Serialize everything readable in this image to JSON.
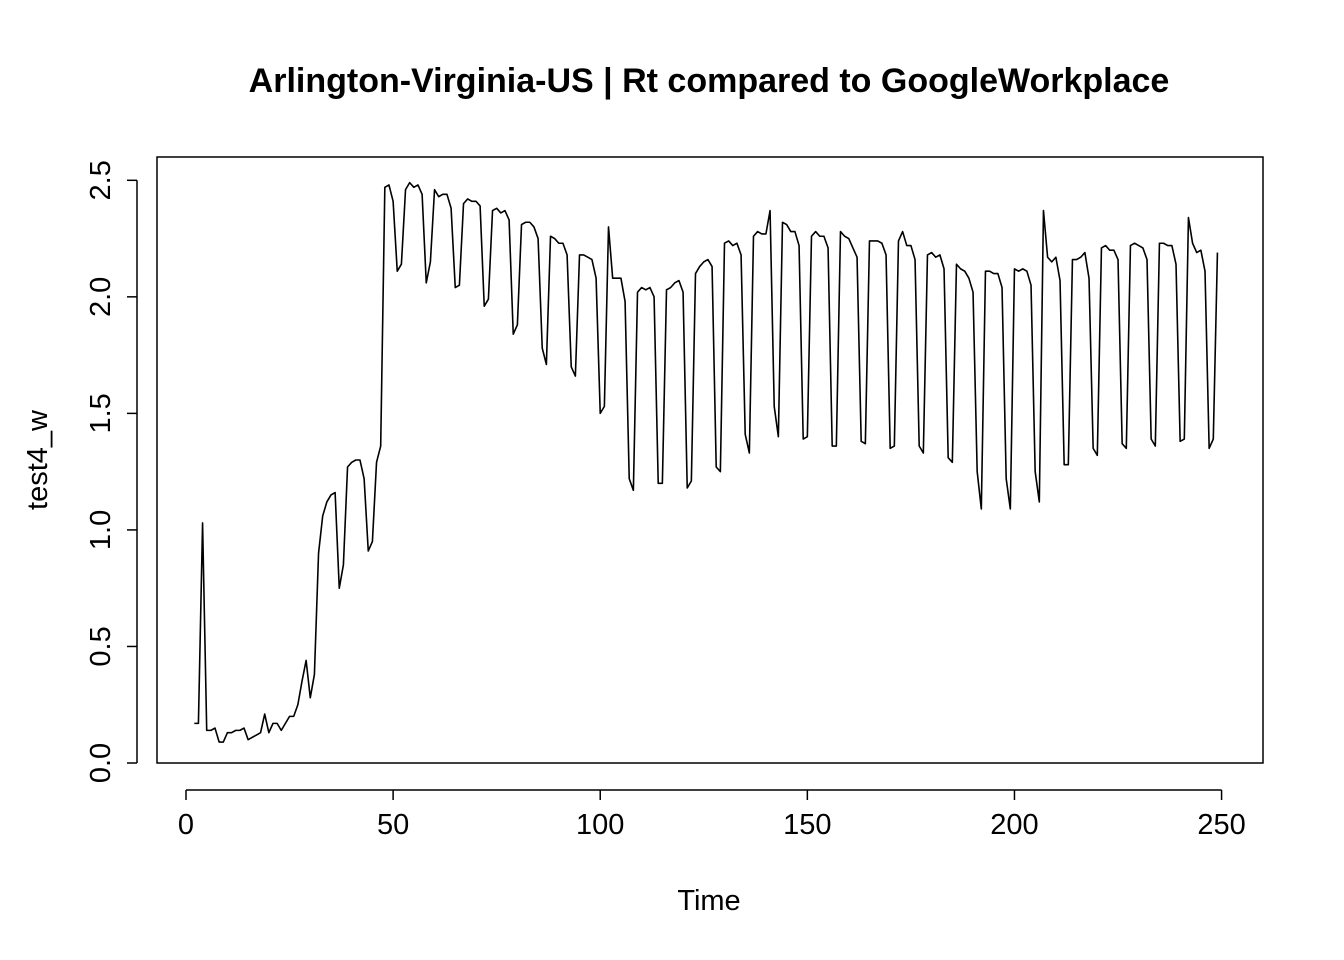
{
  "chart_data": {
    "type": "line",
    "title": "Arlington-Virginia-US | Rt compared to GoogleWorkplace",
    "xlabel": "Time",
    "ylabel": "test4_w",
    "xlim": [
      -7,
      260
    ],
    "ylim": [
      0,
      2.6
    ],
    "x_ticks": [
      0,
      50,
      100,
      150,
      200,
      250
    ],
    "y_ticks": [
      0.0,
      0.5,
      1.0,
      1.5,
      2.0,
      2.5
    ],
    "x_tick_labels": [
      "0",
      "50",
      "100",
      "150",
      "200",
      "250"
    ],
    "y_tick_labels": [
      "0.0",
      "0.5",
      "1.0",
      "1.5",
      "2.0",
      "2.5"
    ],
    "grid": false,
    "legend": "none",
    "line_color": "#000000",
    "series": [
      {
        "x_start": 2,
        "values": [
          0.17,
          0.17,
          1.03,
          0.14,
          0.14,
          0.15,
          0.09,
          0.09,
          0.13,
          0.13,
          0.14,
          0.14,
          0.15,
          0.1,
          0.11,
          0.12,
          0.13,
          0.21,
          0.13,
          0.17,
          0.17,
          0.14,
          0.17,
          0.2,
          0.2,
          0.25,
          0.35,
          0.44,
          0.28,
          0.38,
          0.9,
          1.06,
          1.12,
          1.15,
          1.16,
          0.75,
          0.85,
          1.27,
          1.29,
          1.3,
          1.3,
          1.22,
          0.91,
          0.95,
          1.29,
          1.36,
          2.47,
          2.48,
          2.41,
          2.11,
          2.14,
          2.46,
          2.49,
          2.47,
          2.48,
          2.44,
          2.06,
          2.15,
          2.46,
          2.43,
          2.44,
          2.44,
          2.38,
          2.04,
          2.05,
          2.4,
          2.42,
          2.41,
          2.41,
          2.39,
          1.96,
          1.99,
          2.37,
          2.38,
          2.36,
          2.37,
          2.33,
          1.84,
          1.88,
          2.31,
          2.32,
          2.32,
          2.3,
          2.25,
          1.78,
          1.71,
          2.26,
          2.25,
          2.23,
          2.23,
          2.18,
          1.7,
          1.66,
          2.18,
          2.18,
          2.17,
          2.16,
          2.08,
          1.5,
          1.53,
          2.3,
          2.08,
          2.08,
          2.08,
          1.98,
          1.22,
          1.17,
          2.02,
          2.04,
          2.03,
          2.04,
          2.0,
          1.2,
          1.2,
          2.03,
          2.04,
          2.06,
          2.07,
          2.02,
          1.18,
          1.21,
          2.1,
          2.13,
          2.15,
          2.16,
          2.13,
          1.27,
          1.25,
          2.23,
          2.24,
          2.22,
          2.23,
          2.18,
          1.41,
          1.33,
          2.26,
          2.28,
          2.27,
          2.27,
          2.37,
          1.53,
          1.4,
          2.32,
          2.31,
          2.28,
          2.28,
          2.22,
          1.39,
          1.4,
          2.26,
          2.28,
          2.26,
          2.26,
          2.21,
          1.36,
          1.36,
          2.28,
          2.26,
          2.25,
          2.21,
          2.17,
          1.38,
          1.37,
          2.24,
          2.24,
          2.24,
          2.23,
          2.18,
          1.35,
          1.36,
          2.24,
          2.28,
          2.22,
          2.22,
          2.16,
          1.36,
          1.33,
          2.18,
          2.19,
          2.17,
          2.18,
          2.12,
          1.31,
          1.29,
          2.14,
          2.12,
          2.11,
          2.08,
          2.02,
          1.25,
          1.09,
          2.11,
          2.11,
          2.1,
          2.1,
          2.04,
          1.22,
          1.09,
          2.12,
          2.11,
          2.12,
          2.11,
          2.05,
          1.25,
          1.12,
          2.37,
          2.17,
          2.15,
          2.17,
          2.07,
          1.28,
          1.28,
          2.16,
          2.16,
          2.17,
          2.19,
          2.08,
          1.35,
          1.32,
          2.21,
          2.22,
          2.2,
          2.2,
          2.16,
          1.37,
          1.35,
          2.22,
          2.23,
          2.22,
          2.21,
          2.16,
          1.39,
          1.36,
          2.23,
          2.23,
          2.22,
          2.22,
          2.14,
          1.38,
          1.39,
          2.34,
          2.23,
          2.19,
          2.2,
          2.11,
          1.35,
          1.39,
          2.19
        ]
      }
    ]
  }
}
